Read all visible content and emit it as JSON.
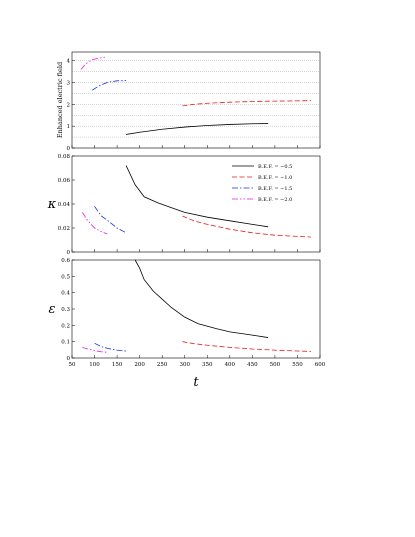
{
  "chart_data": [
    {
      "type": "line",
      "ylabel": "Enhanced electric field",
      "xlim": [
        50,
        600
      ],
      "ylim": [
        0,
        4.4
      ],
      "yticks": [
        0,
        1,
        2,
        3,
        4
      ],
      "grid": "horizontal dotted",
      "series": [
        {
          "name": "B.E.F. = −0.5",
          "color": "#000000",
          "dash": "solid",
          "x": [
            170,
            200,
            250,
            300,
            350,
            400,
            450,
            485
          ],
          "y": [
            0.62,
            0.72,
            0.86,
            0.96,
            1.03,
            1.08,
            1.11,
            1.12
          ]
        },
        {
          "name": "B.E.F. = −1.0",
          "color": "#e8191e",
          "dash": "dashed",
          "x": [
            295,
            320,
            350,
            400,
            450,
            500,
            550,
            580
          ],
          "y": [
            1.93,
            2.0,
            2.05,
            2.1,
            2.13,
            2.15,
            2.16,
            2.17
          ]
        },
        {
          "name": "B.E.F. = −1.5",
          "color": "#1a2fd6",
          "dash": "dashdot",
          "x": [
            95,
            110,
            130,
            150,
            170
          ],
          "y": [
            2.65,
            2.85,
            3.02,
            3.08,
            3.09
          ]
        },
        {
          "name": "B.E.F. = −2.0",
          "color": "#e818e8",
          "dash": "dashdotdot",
          "x": [
            70,
            80,
            95,
            110,
            125
          ],
          "y": [
            3.6,
            3.85,
            4.05,
            4.12,
            4.17
          ]
        }
      ]
    },
    {
      "type": "line",
      "ylabel": "κ",
      "xlim": [
        50,
        600
      ],
      "ylim": [
        0,
        0.08
      ],
      "yticks": [
        0,
        0.02,
        0.04,
        0.06,
        0.08
      ],
      "legend": {
        "placement": "top-right",
        "entries": [
          "B.E.F. = −0.5",
          "B.E.F. = −1.0",
          "B.E.F. = −1.5",
          "B.E.F. = −2.0"
        ]
      },
      "series": [
        {
          "name": "B.E.F. = −0.5",
          "color": "#000000",
          "dash": "solid",
          "x": [
            170,
            190,
            210,
            240,
            270,
            300,
            350,
            400,
            450,
            485
          ],
          "y": [
            0.072,
            0.056,
            0.046,
            0.041,
            0.037,
            0.033,
            0.029,
            0.026,
            0.023,
            0.021
          ]
        },
        {
          "name": "B.E.F. = −1.0",
          "color": "#e8191e",
          "dash": "dashed",
          "x": [
            295,
            320,
            350,
            400,
            450,
            500,
            550,
            580
          ],
          "y": [
            0.03,
            0.026,
            0.023,
            0.019,
            0.016,
            0.014,
            0.013,
            0.0125
          ]
        },
        {
          "name": "B.E.F. = −1.5",
          "color": "#1a2fd6",
          "dash": "dashdot",
          "x": [
            100,
            115,
            130,
            150,
            170
          ],
          "y": [
            0.038,
            0.03,
            0.026,
            0.02,
            0.016
          ]
        },
        {
          "name": "B.E.F. = −2.0",
          "color": "#e818e8",
          "dash": "dashdotdot",
          "x": [
            73,
            85,
            100,
            115,
            128
          ],
          "y": [
            0.033,
            0.026,
            0.02,
            0.017,
            0.015
          ]
        }
      ]
    },
    {
      "type": "line",
      "ylabel": "ε",
      "xlabel": "t",
      "xlim": [
        50,
        600
      ],
      "xticks": [
        50,
        100,
        150,
        200,
        250,
        300,
        350,
        400,
        450,
        500,
        550,
        600
      ],
      "ylim": [
        0,
        0.6
      ],
      "yticks": [
        0,
        0.1,
        0.2,
        0.3,
        0.4,
        0.5,
        0.6
      ],
      "series": [
        {
          "name": "B.E.F. = −0.5",
          "color": "#000000",
          "dash": "solid",
          "x": [
            190,
            200,
            210,
            230,
            250,
            270,
            300,
            330,
            370,
            400,
            450,
            485
          ],
          "y": [
            0.6,
            0.55,
            0.48,
            0.41,
            0.36,
            0.31,
            0.25,
            0.21,
            0.18,
            0.16,
            0.14,
            0.125
          ]
        },
        {
          "name": "B.E.F. = −1.0",
          "color": "#e8191e",
          "dash": "dashed",
          "x": [
            295,
            320,
            350,
            400,
            450,
            500,
            550,
            580
          ],
          "y": [
            0.1,
            0.088,
            0.078,
            0.065,
            0.055,
            0.048,
            0.043,
            0.04
          ]
        },
        {
          "name": "B.E.F. = −1.5",
          "color": "#1a2fd6",
          "dash": "dashdot",
          "x": [
            100,
            115,
            130,
            150,
            170
          ],
          "y": [
            0.09,
            0.07,
            0.058,
            0.048,
            0.042
          ]
        },
        {
          "name": "B.E.F. = −2.0",
          "color": "#e818e8",
          "dash": "dashdotdot",
          "x": [
            73,
            85,
            100,
            115,
            128
          ],
          "y": [
            0.065,
            0.055,
            0.045,
            0.038,
            0.035
          ]
        }
      ]
    }
  ]
}
